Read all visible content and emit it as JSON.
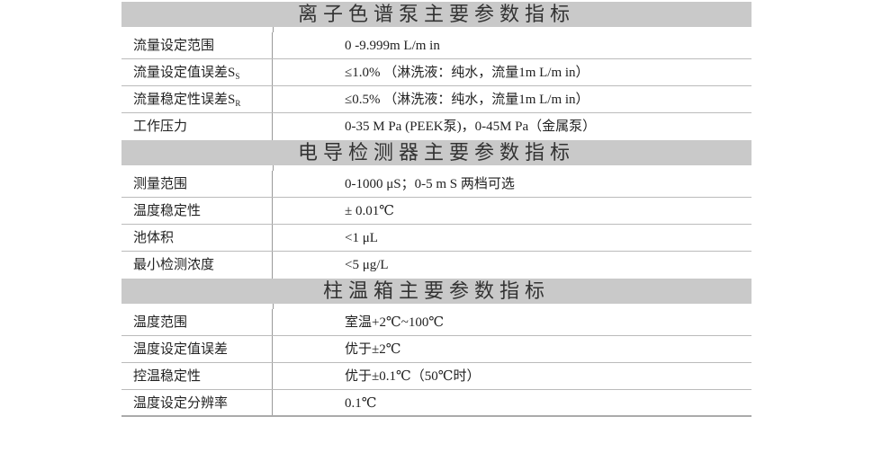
{
  "sections": [
    {
      "title": "离子色谱泵主要参数指标",
      "rows": [
        {
          "label": "流量设定范围",
          "sub": "",
          "value": "0 -9.999m L/m in"
        },
        {
          "label": "流量设定值误差S",
          "sub": "S",
          "value": "≤1.0% （淋洗液：纯水，流量1m L/m in）"
        },
        {
          "label": "流量稳定性误差S",
          "sub": "R",
          "value": "≤0.5% （淋洗液：纯水，流量1m L/m in）"
        },
        {
          "label": "工作压力",
          "sub": "",
          "value": "0-35 M Pa (PEEK泵)，0-45M Pa（金属泵）"
        }
      ]
    },
    {
      "title": "电导检测器主要参数指标",
      "rows": [
        {
          "label": "测量范围",
          "sub": "",
          "value": "0-1000 μS；0-5 m S 两档可选"
        },
        {
          "label": "温度稳定性",
          "sub": "",
          "value": "± 0.01℃"
        },
        {
          "label": "池体积",
          "sub": "",
          "value": "<1 μL"
        },
        {
          "label": "最小检测浓度",
          "sub": "",
          "value": "<5 μg/L"
        }
      ]
    },
    {
      "title": "柱温箱主要参数指标",
      "rows": [
        {
          "label": "温度范围",
          "sub": "",
          "value": "室温+2℃~100℃"
        },
        {
          "label": "温度设定值误差",
          "sub": "",
          "value": "优于±2℃"
        },
        {
          "label": "控温稳定性",
          "sub": "",
          "value": "优于±0.1℃（50℃时）"
        },
        {
          "label": "温度设定分辨率",
          "sub": "",
          "value": "0.1℃"
        }
      ]
    }
  ]
}
